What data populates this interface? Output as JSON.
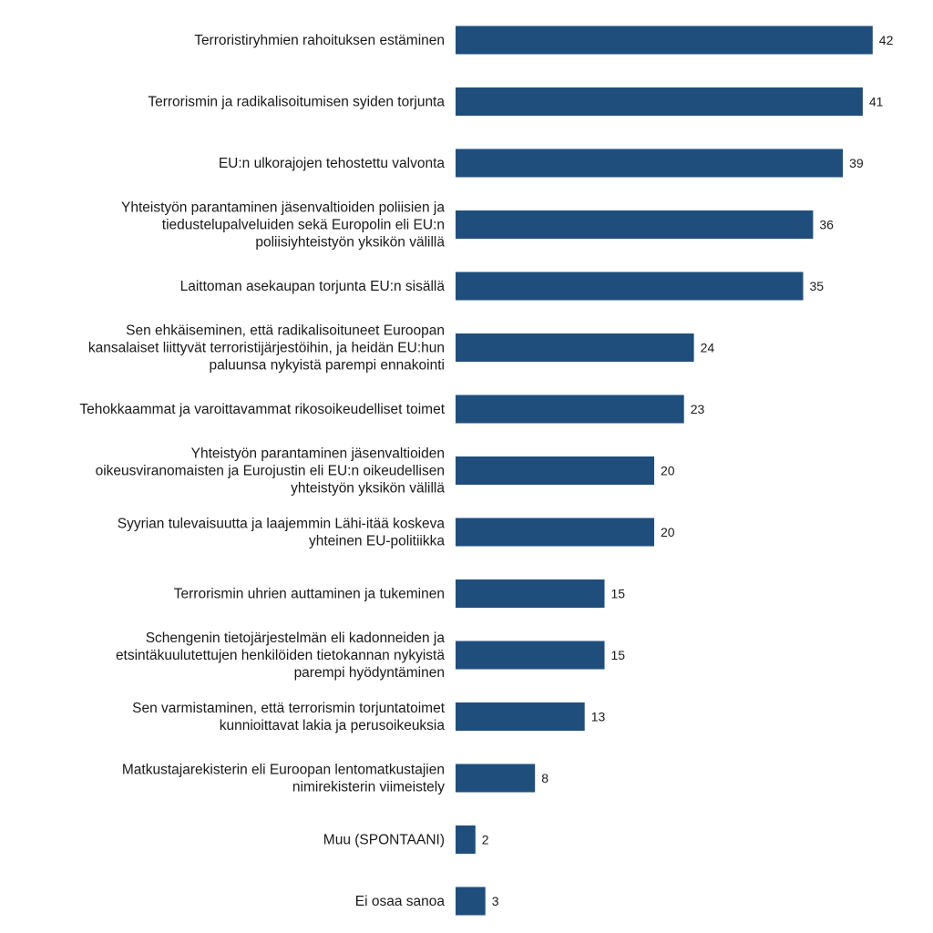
{
  "chart_data": {
    "type": "bar",
    "orientation": "horizontal",
    "title": "",
    "xlabel": "",
    "ylabel": "",
    "xlim": [
      0,
      45
    ],
    "grid": false,
    "legend": "none",
    "bar_color": "#1f4e7c",
    "categories": [
      [
        "Terroristiryhmien rahoituksen estäminen"
      ],
      [
        "Terrorismin ja radikalisoitumisen syiden torjunta"
      ],
      [
        "EU:n ulkorajojen tehostettu valvonta"
      ],
      [
        "Yhteistyön parantaminen jäsenvaltioiden poliisien ja",
        "tiedustelupalveluiden sekä Europolin eli EU:n",
        "poliisiyhteistyön yksikön välillä"
      ],
      [
        "Laittoman asekaupan torjunta EU:n sisällä"
      ],
      [
        "Sen ehkäiseminen, että radikalisoituneet Euroopan",
        "kansalaiset liittyvät terroristijärjestöihin, ja heidän EU:hun",
        "paluunsa nykyistä parempi ennakointi"
      ],
      [
        "Tehokkaammat ja varoittavammat rikosoikeudelliset toimet"
      ],
      [
        "Yhteistyön parantaminen jäsenvaltioiden",
        "oikeusviranomaisten ja Eurojustin eli EU:n oikeudellisen",
        "yhteistyön yksikön välillä"
      ],
      [
        "Syyrian tulevaisuutta ja laajemmin Lähi-itää koskeva",
        "yhteinen EU-politiikka"
      ],
      [
        "Terrorismin uhrien auttaminen ja tukeminen"
      ],
      [
        "Schengenin tietojärjestelmän eli kadonneiden ja",
        "etsintäkuulutettujen henkilöiden tietokannan nykyistä",
        "parempi hyödyntäminen"
      ],
      [
        "Sen varmistaminen, että terrorismin torjuntatoimet",
        "kunnioittavat lakia ja perusoikeuksia"
      ],
      [
        "Matkustajarekisterin eli Euroopan lentomatkustajien",
        "nimirekisterin viimeistely"
      ],
      [
        "Muu (SPONTAANI)"
      ],
      [
        "Ei osaa sanoa"
      ]
    ],
    "values": [
      42,
      41,
      39,
      36,
      35,
      24,
      23,
      20,
      20,
      15,
      15,
      13,
      8,
      2,
      3
    ]
  }
}
